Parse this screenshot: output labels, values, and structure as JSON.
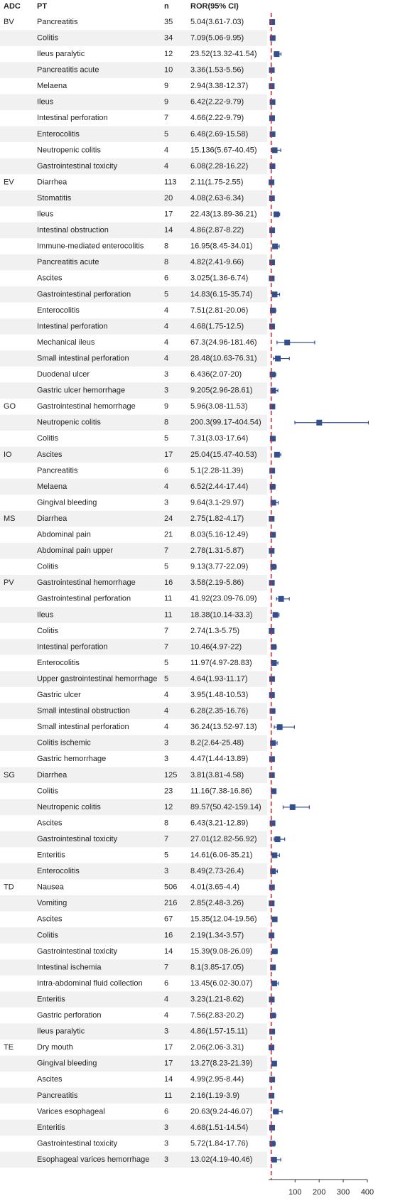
{
  "chart_data": {
    "type": "forest",
    "headers": [
      "ADC",
      "PT",
      "n",
      "ROR(95% CI)"
    ],
    "xlim": [
      -10,
      400
    ],
    "xticks": [
      100,
      200,
      300,
      400
    ],
    "reference_line": 1,
    "color": "#33508e",
    "reference_color": "#d62728",
    "rows": [
      {
        "adc": "BV",
        "pt": "Pancreatitis",
        "n": 35,
        "label": "5.04(3.61-7.03)",
        "ror": 5.04,
        "lower": 3.61,
        "upper": 7.03
      },
      {
        "pt": "Colitis",
        "n": 34,
        "label": "7.09(5.06-9.95)",
        "ror": 7.09,
        "lower": 5.06,
        "upper": 9.95
      },
      {
        "pt": "Ileus paralytic",
        "n": 12,
        "label": "23.52(13.32-41.54)",
        "ror": 23.52,
        "lower": 13.32,
        "upper": 41.54
      },
      {
        "pt": "Pancreatitis acute",
        "n": 10,
        "label": "3.36(1.53-5.56)",
        "ror": 3.36,
        "lower": 1.53,
        "upper": 5.56
      },
      {
        "pt": "Melaena",
        "n": 9,
        "label": "2.94(3.38-12.37)",
        "ror": 2.94,
        "lower": 3.38,
        "upper": 12.37
      },
      {
        "pt": "Ileus",
        "n": 9,
        "label": "6.42(2.22-9.79)",
        "ror": 6.42,
        "lower": 2.22,
        "upper": 9.79
      },
      {
        "pt": "Intestinal perforation",
        "n": 7,
        "label": "4.66(2.22-9.79)",
        "ror": 4.66,
        "lower": 2.22,
        "upper": 9.79
      },
      {
        "pt": "Enterocolitis",
        "n": 5,
        "label": "6.48(2.69-15.58)",
        "ror": 6.48,
        "lower": 2.69,
        "upper": 15.58
      },
      {
        "pt": "Neutropenic colitis",
        "n": 4,
        "label": "15.136(5.67-40.45)",
        "ror": 15.136,
        "lower": 5.67,
        "upper": 40.45
      },
      {
        "pt": "Gastrointestinal toxicity",
        "n": 4,
        "label": "6.08(2.28-16.22)",
        "ror": 6.08,
        "lower": 2.28,
        "upper": 16.22
      },
      {
        "adc": "EV",
        "pt": "Diarrhea",
        "n": 113,
        "label": "2.11(1.75-2.55)",
        "ror": 2.11,
        "lower": 1.75,
        "upper": 2.55
      },
      {
        "pt": "Stomatitis",
        "n": 20,
        "label": "4.08(2.63-6.34)",
        "ror": 4.08,
        "lower": 2.63,
        "upper": 6.34
      },
      {
        "pt": "Ileus",
        "n": 17,
        "label": "22.43(13.89-36.21)",
        "ror": 22.43,
        "lower": 13.89,
        "upper": 36.21
      },
      {
        "pt": "Intestinal obstruction",
        "n": 14,
        "label": "4.86(2.87-8.22)",
        "ror": 4.86,
        "lower": 2.87,
        "upper": 8.22
      },
      {
        "pt": "Immune-mediated enterocolitis",
        "n": 8,
        "label": "16.95(8.45-34.01)",
        "ror": 16.95,
        "lower": 8.45,
        "upper": 34.01
      },
      {
        "pt": "Pancreatitis acute",
        "n": 8,
        "label": "4.82(2.41-9.66)",
        "ror": 4.82,
        "lower": 2.41,
        "upper": 9.66
      },
      {
        "pt": "Ascites",
        "n": 6,
        "label": "3.025(1.36-6.74)",
        "ror": 3.025,
        "lower": 1.36,
        "upper": 6.74
      },
      {
        "pt": "Gastrointestinal perforation",
        "n": 5,
        "label": "14.83(6.15-35.74)",
        "ror": 14.83,
        "lower": 6.15,
        "upper": 35.74
      },
      {
        "pt": "Enterocolitis",
        "n": 4,
        "label": "7.51(2.81-20.06)",
        "ror": 7.51,
        "lower": 2.81,
        "upper": 20.06
      },
      {
        "pt": "Intestinal perforation",
        "n": 4,
        "label": "4.68(1.75-12.5)",
        "ror": 4.68,
        "lower": 1.75,
        "upper": 12.5
      },
      {
        "pt": "Mechanical ileus",
        "n": 4,
        "label": "67.3(24.96-181.46)",
        "ror": 67.3,
        "lower": 24.96,
        "upper": 181.46
      },
      {
        "pt": "Small intestinal perforation",
        "n": 4,
        "label": "28.48(10.63-76.31)",
        "ror": 28.48,
        "lower": 10.63,
        "upper": 76.31
      },
      {
        "pt": "Duodenal ulcer",
        "n": 3,
        "label": "6.436(2.07-20)",
        "ror": 6.436,
        "lower": 2.07,
        "upper": 20
      },
      {
        "pt": "Gastric ulcer hemorrhage",
        "n": 3,
        "label": "9.205(2.96-28.61)",
        "ror": 9.205,
        "lower": 2.96,
        "upper": 28.61
      },
      {
        "adc": "GO",
        "pt": "Gastrointestinal hemorrhage",
        "n": 9,
        "label": "5.96(3.08-11.53)",
        "ror": 5.96,
        "lower": 3.08,
        "upper": 11.53
      },
      {
        "pt": "Neutropenic colitis",
        "n": 8,
        "label": "200.3(99.17-404.54)",
        "ror": 200.3,
        "lower": 99.17,
        "upper": 404.54
      },
      {
        "pt": "Colitis",
        "n": 5,
        "label": "7.31(3.03-17.64)",
        "ror": 7.31,
        "lower": 3.03,
        "upper": 17.64
      },
      {
        "adc": "IO",
        "pt": "Ascites",
        "n": 17,
        "label": "25.04(15.47-40.53)",
        "ror": 25.04,
        "lower": 15.47,
        "upper": 40.53
      },
      {
        "pt": "Pancreatitis",
        "n": 6,
        "label": "5.1(2.28-11.39)",
        "ror": 5.1,
        "lower": 2.28,
        "upper": 11.39
      },
      {
        "pt": "Melaena",
        "n": 4,
        "label": "6.52(2.44-17.44)",
        "ror": 6.52,
        "lower": 2.44,
        "upper": 17.44
      },
      {
        "pt": "Gingival bleeding",
        "n": 3,
        "label": "9.64(3.1-29.97)",
        "ror": 9.64,
        "lower": 3.1,
        "upper": 29.97
      },
      {
        "adc": "MS",
        "pt": "Diarrhea",
        "n": 24,
        "label": "2.75(1.82-4.17)",
        "ror": 2.75,
        "lower": 1.82,
        "upper": 4.17
      },
      {
        "pt": "Abdominal pain",
        "n": 21,
        "label": "8.03(5.16-12.49)",
        "ror": 8.03,
        "lower": 5.16,
        "upper": 12.49
      },
      {
        "pt": "Abdominal pain upper",
        "n": 7,
        "label": "2.78(1.31-5.87)",
        "ror": 2.78,
        "lower": 1.31,
        "upper": 5.87
      },
      {
        "pt": "Colitis",
        "n": 5,
        "label": "9.13(3.77-22.09)",
        "ror": 9.13,
        "lower": 3.77,
        "upper": 22.09
      },
      {
        "adc": "PV",
        "pt": "Gastrointestinal hemorrhage",
        "n": 16,
        "label": "3.58(2.19-5.86)",
        "ror": 3.58,
        "lower": 2.19,
        "upper": 5.86
      },
      {
        "pt": "Gastrointestinal perforation",
        "n": 11,
        "label": "41.92(23.09-76.09)",
        "ror": 41.92,
        "lower": 23.09,
        "upper": 76.09
      },
      {
        "pt": "Ileus",
        "n": 11,
        "label": "18.38(10.14-33.3)",
        "ror": 18.38,
        "lower": 10.14,
        "upper": 33.3
      },
      {
        "pt": "Colitis",
        "n": 7,
        "label": "2.74(1.3-5.75)",
        "ror": 2.74,
        "lower": 1.3,
        "upper": 5.75
      },
      {
        "pt": "Intestinal perforation",
        "n": 7,
        "label": "10.46(4.97-22)",
        "ror": 10.46,
        "lower": 4.97,
        "upper": 22
      },
      {
        "pt": "Enterocolitis",
        "n": 5,
        "label": "11.97(4.97-28.83)",
        "ror": 11.97,
        "lower": 4.97,
        "upper": 28.83
      },
      {
        "pt": "Upper gastrointestinal hemorrhage",
        "n": 5,
        "label": "4.64(1.93-11.17)",
        "ror": 4.64,
        "lower": 1.93,
        "upper": 11.17
      },
      {
        "pt": "Gastric ulcer",
        "n": 4,
        "label": "3.95(1.48-10.53)",
        "ror": 3.95,
        "lower": 1.48,
        "upper": 10.53
      },
      {
        "pt": "Small intestinal obstruction",
        "n": 4,
        "label": "6.28(2.35-16.76)",
        "ror": 6.28,
        "lower": 2.35,
        "upper": 16.76
      },
      {
        "pt": "Small intestinal perforation",
        "n": 4,
        "label": "36.24(13.52-97.13)",
        "ror": 36.24,
        "lower": 13.52,
        "upper": 97.13
      },
      {
        "pt": "Colitis ischemic",
        "n": 3,
        "label": "8.2(2.64-25.48)",
        "ror": 8.2,
        "lower": 2.64,
        "upper": 25.48
      },
      {
        "pt": "Gastric hemorrhage",
        "n": 3,
        "label": "4.47(1.44-13.89)",
        "ror": 4.47,
        "lower": 1.44,
        "upper": 13.89
      },
      {
        "adc": "SG",
        "pt": "Diarrhea",
        "n": 125,
        "label": "3.81(3.81-4.58)",
        "ror": 3.81,
        "lower": 3.81,
        "upper": 4.58
      },
      {
        "pt": "Colitis",
        "n": 23,
        "label": "11.16(7.38-16.86)",
        "ror": 11.16,
        "lower": 7.38,
        "upper": 16.86
      },
      {
        "pt": "Neutropenic colitis",
        "n": 12,
        "label": "89.57(50.42-159.14)",
        "ror": 89.57,
        "lower": 50.42,
        "upper": 159.14
      },
      {
        "pt": "Ascites",
        "n": 8,
        "label": "6.43(3.21-12.89)",
        "ror": 6.43,
        "lower": 3.21,
        "upper": 12.89
      },
      {
        "pt": "Gastrointestinal toxicity",
        "n": 7,
        "label": "27.01(12.82-56.92)",
        "ror": 27.01,
        "lower": 12.82,
        "upper": 56.92
      },
      {
        "pt": "Enteritis",
        "n": 5,
        "label": "14.61(6.06-35.21)",
        "ror": 14.61,
        "lower": 6.06,
        "upper": 35.21
      },
      {
        "pt": "Enterocolitis",
        "n": 3,
        "label": "8.49(2.73-26.4)",
        "ror": 8.49,
        "lower": 2.73,
        "upper": 26.4
      },
      {
        "adc": "TD",
        "pt": "Nausea",
        "n": 506,
        "label": "4.01(3.65-4.4)",
        "ror": 4.01,
        "lower": 3.65,
        "upper": 4.4
      },
      {
        "pt": "Vomiting",
        "n": 216,
        "label": "2.85(2.48-3.26)",
        "ror": 2.85,
        "lower": 2.48,
        "upper": 3.26
      },
      {
        "pt": "Ascites",
        "n": 67,
        "label": "15.35(12.04-19.56)",
        "ror": 15.35,
        "lower": 12.04,
        "upper": 19.56
      },
      {
        "pt": "Colitis",
        "n": 16,
        "label": "2.19(1.34-3.57)",
        "ror": 2.19,
        "lower": 1.34,
        "upper": 3.57
      },
      {
        "pt": "Gastrointestinal toxicity",
        "n": 14,
        "label": "15.39(9.08-26.09)",
        "ror": 15.39,
        "lower": 9.08,
        "upper": 26.09
      },
      {
        "pt": "Intestinal ischemia",
        "n": 7,
        "label": "8.1(3.85-17.05)",
        "ror": 8.1,
        "lower": 3.85,
        "upper": 17.05
      },
      {
        "pt": "Intra-abdominal fluid collection",
        "n": 6,
        "label": "13.45(6.02-30.07)",
        "ror": 13.45,
        "lower": 6.02,
        "upper": 30.07
      },
      {
        "pt": "Enteritis",
        "n": 4,
        "label": "3.23(1.21-8.62)",
        "ror": 3.23,
        "lower": 1.21,
        "upper": 8.62
      },
      {
        "pt": "Gastric perforation",
        "n": 4,
        "label": "7.56(2.83-20.2)",
        "ror": 7.56,
        "lower": 2.83,
        "upper": 20.2
      },
      {
        "pt": "Ileus paralytic",
        "n": 3,
        "label": "4.86(1.57-15.11)",
        "ror": 4.86,
        "lower": 1.57,
        "upper": 15.11
      },
      {
        "adc": "TE",
        "pt": "Dry mouth",
        "n": 17,
        "label": "2.06(2.06-3.31)",
        "ror": 2.06,
        "lower": 2.06,
        "upper": 3.31
      },
      {
        "pt": "Gingival bleeding",
        "n": 17,
        "label": "13.27(8.23-21.39)",
        "ror": 13.27,
        "lower": 8.23,
        "upper": 21.39
      },
      {
        "pt": "Ascites",
        "n": 14,
        "label": "4.99(2.95-8.44)",
        "ror": 4.99,
        "lower": 2.95,
        "upper": 8.44
      },
      {
        "pt": "Pancreatitis",
        "n": 11,
        "label": "2.16(1.19-3.9)",
        "ror": 2.16,
        "lower": 1.19,
        "upper": 3.9
      },
      {
        "pt": "Varices esophageal",
        "n": 6,
        "label": "20.63(9.24-46.07)",
        "ror": 20.63,
        "lower": 9.24,
        "upper": 46.07
      },
      {
        "pt": "Enteritis",
        "n": 3,
        "label": "4.68(1.51-14.54)",
        "ror": 4.68,
        "lower": 1.51,
        "upper": 14.54
      },
      {
        "pt": "Gastrointestinal toxicity",
        "n": 3,
        "label": "5.72(1.84-17.76)",
        "ror": 5.72,
        "lower": 1.84,
        "upper": 17.76
      },
      {
        "pt": "Esophageal varices hemorrhage",
        "n": 3,
        "label": "13.02(4.19-40.46)",
        "ror": 13.02,
        "lower": 4.19,
        "upper": 40.46
      }
    ]
  }
}
